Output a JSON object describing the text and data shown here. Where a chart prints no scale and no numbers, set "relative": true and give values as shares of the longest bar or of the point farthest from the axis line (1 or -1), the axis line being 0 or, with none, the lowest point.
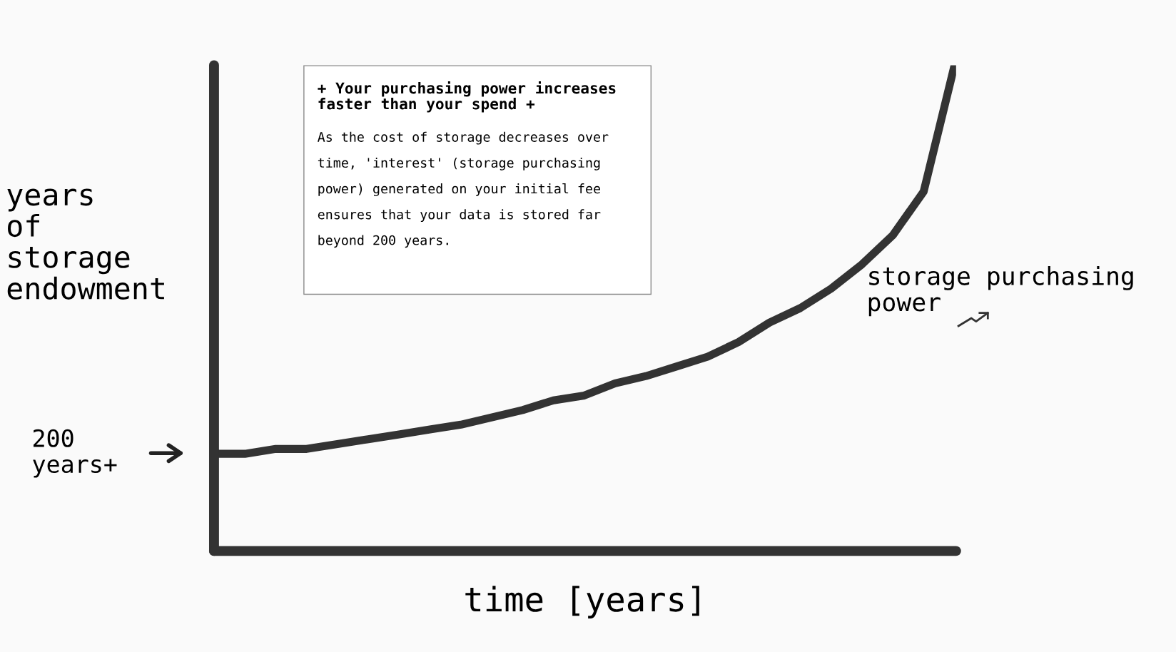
{
  "chart_data": {
    "type": "line",
    "relative": true,
    "xlabel": "time [years]",
    "ylabel": "years\nof\nstorage\nendowment",
    "categories": [
      null,
      null,
      null,
      null,
      null,
      null,
      null,
      null,
      null,
      null,
      null,
      null,
      null,
      null,
      null,
      null,
      null,
      null,
      null,
      null,
      null,
      null,
      null,
      null,
      null
    ],
    "series": [
      {
        "name": "storage purchasing power",
        "color": "#333333",
        "values": [
          0.2,
          0.2,
          0.21,
          0.21,
          0.22,
          0.23,
          0.24,
          0.25,
          0.26,
          0.275,
          0.29,
          0.31,
          0.32,
          0.345,
          0.36,
          0.38,
          0.4,
          0.43,
          0.47,
          0.5,
          0.54,
          0.59,
          0.65,
          0.74,
          1.0
        ]
      }
    ],
    "annotations": [
      "+ Your purchasing power increases\nfaster than your spend +",
      "As the cost of storage decreases over\ntime, 'interest' (storage purchasing\npower) generated on your initial fee\nensures that your data is stored far\nbeyond 200 years.",
      "200\nyears+"
    ],
    "grid": false,
    "legend": false,
    "marker": "none",
    "line_style": "solid"
  }
}
